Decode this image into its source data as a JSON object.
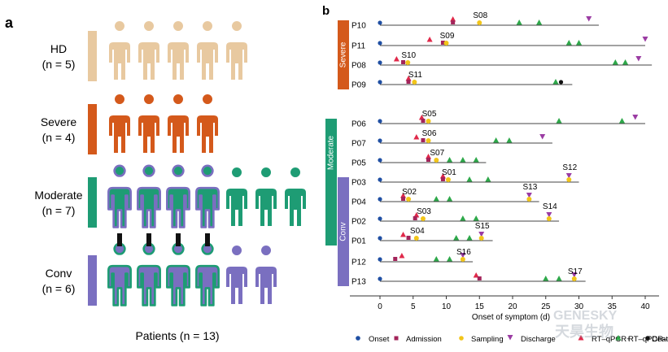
{
  "panel_a": {
    "letter": "a",
    "groups": [
      {
        "label": "HD",
        "n": "(n = 5)",
        "color": "#e8c9a0",
        "bar": "#e8c9a0",
        "count": 5,
        "ringed": 0,
        "ring": ""
      },
      {
        "label": "Severe",
        "n": "(n = 4)",
        "color": "#d4591b",
        "bar": "#d4591b",
        "count": 4,
        "ringed": 0,
        "ring": ""
      },
      {
        "label": "Moderate",
        "n": "(n = 7)",
        "color": "#1e9c74",
        "bar": "#1e9c74",
        "count": 7,
        "ringed": 4,
        "ring": "#7a6fc0"
      },
      {
        "label": "Conv",
        "n": "(n = 6)",
        "color": "#7a6fc0",
        "bar": "#7a6fc0",
        "count": 6,
        "ringed": 4,
        "ring": "#1e9c74"
      }
    ],
    "footer": "Patients (n = 13)"
  },
  "panel_b": {
    "letter": "b",
    "x_label": "Onset of symptom (d)",
    "x_ticks": [
      0,
      5,
      10,
      15,
      20,
      25,
      30,
      35,
      40
    ],
    "groups": [
      {
        "label": "Severe",
        "color": "#d4591b",
        "from": "P10",
        "to": "P09"
      },
      {
        "label": "Moderate",
        "color": "#1e9c74",
        "from": "P06",
        "to": "P01"
      },
      {
        "label": "Conv",
        "color": "#7a6fc0",
        "from": "P03",
        "to": "P13"
      }
    ],
    "patients": [
      {
        "id": "P10",
        "end": 33,
        "onset": 0,
        "admission": 11,
        "sampling": 15,
        "sample": "S08",
        "rtpos": [
          11
        ],
        "rtneg": [
          21,
          24
        ],
        "discharge": [
          31.5
        ],
        "death": null
      },
      {
        "id": "P11",
        "end": 40,
        "onset": 0,
        "admission": 9.5,
        "sampling": 10,
        "sample": "S09",
        "rtpos": [
          7.5
        ],
        "rtneg": [
          28.5,
          30
        ],
        "discharge": [
          40
        ],
        "death": null
      },
      {
        "id": "P08",
        "end": 41,
        "onset": 0,
        "admission": 3.5,
        "sampling": 4.2,
        "sample": "S10",
        "rtpos": [
          2.5
        ],
        "rtneg": [
          35.5,
          37
        ],
        "discharge": [
          39
        ],
        "death": null
      },
      {
        "id": "P09",
        "end": 29,
        "onset": 0,
        "admission": 4.3,
        "sampling": 5.2,
        "sample": "S11",
        "rtpos": [
          4.3
        ],
        "rtneg": [
          26.5
        ],
        "discharge": [],
        "death": 27.3
      },
      {
        "id": "P06",
        "end": 40,
        "onset": 0,
        "admission": 6.5,
        "sampling": 7.3,
        "sample": "S05",
        "rtpos": [
          6.3
        ],
        "rtneg": [
          27,
          36.5
        ],
        "discharge": [
          38.5
        ],
        "death": null
      },
      {
        "id": "P07",
        "end": 26,
        "onset": 0,
        "admission": 6.5,
        "sampling": 7.3,
        "sample": "S06",
        "rtpos": [
          5.5
        ],
        "rtneg": [
          17.5,
          19.5
        ],
        "discharge": [
          24.5
        ],
        "death": null
      },
      {
        "id": "P05",
        "end": 16,
        "onset": 0,
        "admission": 7.3,
        "sampling": 8.5,
        "sample": "S07",
        "rtpos": [
          7.3
        ],
        "rtneg": [
          10.5,
          12.5,
          14.5
        ],
        "discharge": [],
        "death": null
      },
      {
        "id": "P03",
        "end": 30,
        "onset": 0,
        "admission": 9.5,
        "sampling": 10.3,
        "sample": "S01",
        "rtpos": [
          9.5
        ],
        "rtneg": [
          13.5,
          16.3
        ],
        "discharge": [
          28.5
        ],
        "death": null,
        "sample2": "S12",
        "sampling2": 28.5
      },
      {
        "id": "P04",
        "end": 24,
        "onset": 0,
        "admission": 3.5,
        "sampling": 4.3,
        "sample": "S02",
        "rtpos": [
          3.5
        ],
        "rtneg": [
          8.5,
          10.5
        ],
        "discharge": [
          22.5
        ],
        "death": null,
        "sample2": "S13",
        "sampling2": 22.5
      },
      {
        "id": "P02",
        "end": 27,
        "onset": 0,
        "admission": 5.3,
        "sampling": 6.5,
        "sample": "S03",
        "rtpos": [
          5.5
        ],
        "rtneg": [
          12.5,
          14.5
        ],
        "discharge": [
          25.5
        ],
        "death": null,
        "sample2": "S14",
        "sampling2": 25.5
      },
      {
        "id": "P01",
        "end": 17,
        "onset": 0,
        "admission": 4.3,
        "sampling": 5.5,
        "sample": "S04",
        "rtpos": [
          3.5
        ],
        "rtneg": [
          11.5,
          13.5
        ],
        "discharge": [
          15.3
        ],
        "death": null,
        "sample2": "S15",
        "sampling2": 15.3
      },
      {
        "id": "P12",
        "end": 14,
        "onset": 0,
        "admission": 2.3,
        "sampling": 12.5,
        "sample": "S16",
        "rtpos": [
          3.3
        ],
        "rtneg": [
          8.5,
          10.5
        ],
        "discharge": [
          12.5
        ],
        "death": null
      },
      {
        "id": "P13",
        "end": 31,
        "onset": 0,
        "admission": 15,
        "sampling": 29.3,
        "sample": "S17",
        "rtpos": [
          14.5
        ],
        "rtneg": [
          25,
          27
        ],
        "discharge": [
          29.3
        ],
        "death": null
      }
    ],
    "legend": [
      {
        "label": "Onset",
        "marker": "circle",
        "color": "#1f4fa3"
      },
      {
        "label": "Admission",
        "marker": "square",
        "color": "#a3245a"
      },
      {
        "label": "Sampling",
        "marker": "circle",
        "color": "#f2c51a"
      },
      {
        "label": "Discharge",
        "marker": "down",
        "color": "#9b3ca3"
      },
      {
        "label": "RT–qPCR+",
        "marker": "up",
        "color": "#e0294a"
      },
      {
        "label": "RT–qPCR–",
        "marker": "up",
        "color": "#2ea84a"
      },
      {
        "label": "Death",
        "marker": "circle",
        "color": "#111111"
      }
    ],
    "watermark_en": "GENESKY",
    "watermark_cn": "天昊生物"
  }
}
